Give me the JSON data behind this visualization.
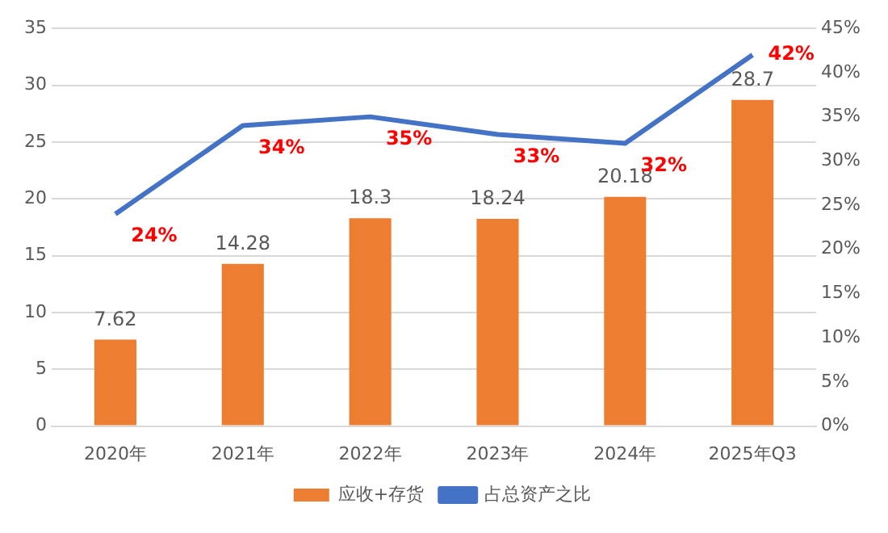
{
  "chart_data": {
    "type": "bar",
    "categories": [
      "2020年",
      "2021年",
      "2022年",
      "2023年",
      "2024年",
      "2025年Q3"
    ],
    "series": [
      {
        "name": "应收+存货",
        "color": "#ed7d31",
        "values": [
          7.62,
          14.28,
          18.3,
          18.24,
          20.18,
          28.7
        ],
        "value_labels": [
          "7.62",
          "14.28",
          "18.3",
          "18.24",
          "20.18",
          "28.7"
        ]
      },
      {
        "name": "占总资产之比",
        "type": "line",
        "axis": "y2",
        "color": "#4472c4",
        "values": [
          24,
          34,
          35,
          33,
          32,
          42
        ],
        "value_labels": [
          "24%",
          "34%",
          "35%",
          "33%",
          "32%",
          "42%"
        ]
      }
    ],
    "ylim": [
      0,
      35
    ],
    "yticks": [
      0,
      5,
      10,
      15,
      20,
      25,
      30,
      35
    ],
    "y2lim": [
      0,
      45
    ],
    "y2ticks": [
      {
        "value": 0,
        "label": "0%"
      },
      {
        "value": 5,
        "label": "5%"
      },
      {
        "value": 10,
        "label": "10%"
      },
      {
        "value": 15,
        "label": "15%"
      },
      {
        "value": 20,
        "label": "20%"
      },
      {
        "value": 25,
        "label": "25%"
      },
      {
        "value": 30,
        "label": "30%"
      },
      {
        "value": 35,
        "label": "35%"
      },
      {
        "value": 40,
        "label": "40%"
      },
      {
        "value": 45,
        "label": "45%"
      }
    ],
    "grid": "y",
    "legend": "bottom",
    "marker": "none"
  }
}
